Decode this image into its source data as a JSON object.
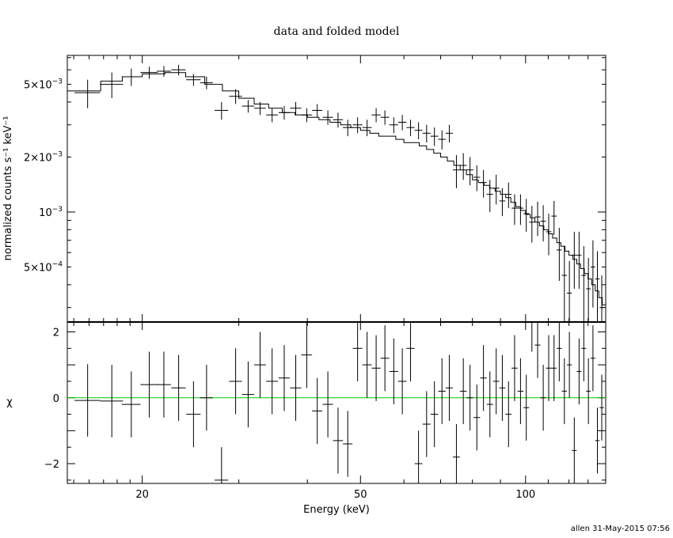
{
  "title": "data and folded model",
  "xlabel": "Energy (keV)",
  "footer": "allen 31-May-2015 07:56",
  "colors": {
    "zero_line": "#00cc00",
    "ink": "#000000"
  },
  "chart_data": [
    {
      "panel": "spectrum",
      "type": "scatter",
      "ylabel": "normalized counts s⁻¹ keV⁻¹",
      "xscale": "log",
      "yscale": "log",
      "xlim": [
        14.6,
        140
      ],
      "ylim": [
        0.00025,
        0.0072
      ],
      "xticks_labeled": [
        "20",
        "50",
        "100"
      ],
      "yticks_labeled": [
        {
          "mant": "5",
          "exp": "-3",
          "value": 0.005
        },
        {
          "mant": "2",
          "exp": "-3",
          "value": 0.002
        },
        {
          "mant": "",
          "exp": "-3",
          "value": 0.001
        },
        {
          "mant": "5",
          "exp": "-4",
          "value": 0.0005
        }
      ],
      "data": {
        "x": [
          15.9,
          17.6,
          19.1,
          20.6,
          21.9,
          23.3,
          24.8,
          26.2,
          27.9,
          29.6,
          31.2,
          32.8,
          34.5,
          36.3,
          38.1,
          39.9,
          41.7,
          43.6,
          45.5,
          47.4,
          49.4,
          51.4,
          53.4,
          55.4,
          57.5,
          59.6,
          61.7,
          63.8,
          66.0,
          68.2,
          70.4,
          72.6,
          74.8,
          77.0,
          79.2,
          81.5,
          83.8,
          86.1,
          88.4,
          90.7,
          93.1,
          95.5,
          97.9,
          100.3,
          102.7,
          105.2,
          107.7,
          110.2,
          112.7,
          115.2,
          117.7,
          120.2,
          122.7,
          125.2,
          127.7,
          130.2,
          132.7,
          135.2,
          137.7
        ],
        "xerr": [
          0.85,
          0.85,
          0.75,
          0.75,
          0.65,
          0.7,
          0.75,
          0.7,
          0.8,
          0.8,
          0.8,
          0.8,
          0.85,
          0.85,
          0.9,
          0.9,
          0.9,
          0.95,
          0.95,
          0.95,
          1.0,
          1.0,
          1.0,
          1.0,
          1.05,
          1.05,
          1.05,
          1.05,
          1.1,
          1.1,
          1.1,
          1.1,
          1.1,
          1.1,
          1.1,
          1.15,
          1.15,
          1.15,
          1.15,
          1.15,
          1.2,
          1.2,
          1.2,
          1.2,
          1.2,
          1.25,
          1.25,
          1.25,
          1.25,
          1.25,
          1.25,
          1.25,
          1.25,
          1.25,
          1.25,
          1.25,
          1.25,
          1.25,
          1.25
        ],
        "y": [
          0.0045,
          0.005,
          0.0055,
          0.0058,
          0.0059,
          0.006,
          0.0053,
          0.0051,
          0.0036,
          0.0043,
          0.0038,
          0.0037,
          0.0034,
          0.0035,
          0.0037,
          0.0034,
          0.0036,
          0.0033,
          0.0032,
          0.0029,
          0.003,
          0.0029,
          0.0034,
          0.0033,
          0.003,
          0.0031,
          0.0029,
          0.0028,
          0.0027,
          0.0026,
          0.0025,
          0.0027,
          0.0017,
          0.0018,
          0.0017,
          0.00155,
          0.00145,
          0.00125,
          0.00135,
          0.00115,
          0.00125,
          0.00105,
          0.00105,
          0.00098,
          0.00088,
          0.00094,
          0.00089,
          0.00078,
          0.00095,
          0.00062,
          0.00045,
          0.00036,
          0.00058,
          0.00058,
          0.00045,
          0.00038,
          0.0005,
          0.00043,
          0.0003
        ],
        "yerr": [
          0.0008,
          0.0008,
          0.0006,
          0.00045,
          0.0004,
          0.0004,
          0.0004,
          0.0004,
          0.0004,
          0.0004,
          0.0003,
          0.0003,
          0.0003,
          0.0003,
          0.0003,
          0.0003,
          0.0003,
          0.0003,
          0.0003,
          0.0003,
          0.0003,
          0.0003,
          0.0003,
          0.0003,
          0.0003,
          0.0003,
          0.0003,
          0.0003,
          0.0003,
          0.0003,
          0.0003,
          0.0003,
          0.00035,
          0.0003,
          0.0003,
          0.00025,
          0.00025,
          0.00025,
          0.00025,
          0.0002,
          0.0002,
          0.0002,
          0.0002,
          0.0002,
          0.0002,
          0.0002,
          0.0002,
          0.0002,
          0.0002,
          0.0002,
          0.0002,
          0.00018,
          0.0002,
          0.0002,
          0.0002,
          0.00018,
          0.0002,
          0.00018,
          0.00015
        ]
      },
      "model": {
        "x": [
          14.6,
          16.8,
          18.4,
          20.0,
          22.0,
          24.0,
          26.0,
          28.0,
          30.0,
          32.0,
          34.0,
          36.0,
          38.0,
          40.0,
          42.0,
          44.0,
          46.0,
          48.0,
          50.0,
          52.0,
          54.0,
          56.0,
          58.0,
          60.0,
          62.0,
          64.0,
          66.0,
          68.0,
          70.0,
          72.0,
          74.0,
          76.0,
          78.0,
          80.0,
          82.0,
          84.0,
          86.0,
          88.0,
          90.0,
          92.0,
          94.0,
          96.0,
          98.0,
          100.0,
          102.0,
          104.0,
          106.0,
          108.0,
          110.0,
          112.0,
          114.0,
          116.0,
          118.0,
          120.0,
          122.0,
          124.0,
          126.0,
          128.0,
          130.0,
          132.0,
          134.0,
          136.0,
          138.0,
          140.0
        ],
        "y": [
          0.0046,
          0.0052,
          0.0055,
          0.0057,
          0.0058,
          0.0055,
          0.005,
          0.0046,
          0.0042,
          0.0039,
          0.0037,
          0.0035,
          0.0034,
          0.0033,
          0.0032,
          0.0031,
          0.003,
          0.0029,
          0.0028,
          0.0027,
          0.0026,
          0.0026,
          0.0025,
          0.0024,
          0.0024,
          0.0023,
          0.0022,
          0.0021,
          0.002,
          0.0019,
          0.0018,
          0.0017,
          0.0016,
          0.0015,
          0.00145,
          0.0014,
          0.00135,
          0.0013,
          0.00125,
          0.0012,
          0.00113,
          0.00107,
          0.00102,
          0.00097,
          0.00093,
          0.00088,
          0.00084,
          0.0008,
          0.00076,
          0.00072,
          0.00068,
          0.00065,
          0.00061,
          0.00058,
          0.00055,
          0.00052,
          0.00049,
          0.00046,
          0.00043,
          0.0004,
          0.00037,
          0.00034,
          0.00031,
          0.00029
        ]
      }
    },
    {
      "panel": "residuals",
      "type": "scatter",
      "ylabel": "χ",
      "xscale": "log",
      "ylim": [
        -2.6,
        2.3
      ],
      "yticks": [
        2,
        0,
        -2
      ],
      "yticks_labeled": [
        "2",
        "0",
        "−2"
      ],
      "zero_line": 0,
      "data": {
        "x": [
          15.9,
          17.6,
          19.1,
          20.6,
          21.9,
          23.3,
          24.8,
          26.2,
          27.9,
          29.6,
          31.2,
          32.8,
          34.5,
          36.3,
          38.1,
          39.9,
          41.7,
          43.6,
          45.5,
          47.4,
          49.4,
          51.4,
          53.4,
          55.4,
          57.5,
          59.6,
          61.7,
          63.8,
          66.0,
          68.2,
          70.4,
          72.6,
          74.8,
          77.0,
          79.2,
          81.5,
          83.8,
          86.1,
          88.4,
          90.7,
          93.1,
          95.5,
          97.9,
          100.3,
          102.7,
          105.2,
          107.7,
          110.2,
          112.7,
          115.2,
          117.7,
          120.2,
          122.7,
          125.2,
          127.7,
          130.2,
          132.7,
          135.2,
          137.7
        ],
        "xerr": [
          0.85,
          0.85,
          0.75,
          0.75,
          0.65,
          0.7,
          0.75,
          0.7,
          0.8,
          0.8,
          0.8,
          0.8,
          0.85,
          0.85,
          0.9,
          0.9,
          0.9,
          0.95,
          0.95,
          0.95,
          1.0,
          1.0,
          1.0,
          1.0,
          1.05,
          1.05,
          1.05,
          1.05,
          1.1,
          1.1,
          1.1,
          1.1,
          1.1,
          1.1,
          1.1,
          1.15,
          1.15,
          1.15,
          1.15,
          1.15,
          1.2,
          1.2,
          1.2,
          1.2,
          1.2,
          1.25,
          1.25,
          1.25,
          1.25,
          1.25,
          1.25,
          1.25,
          1.25,
          1.25,
          1.25,
          1.25,
          1.25,
          1.25,
          1.25
        ],
        "y": [
          -0.08,
          -0.1,
          -0.2,
          0.4,
          0.4,
          0.3,
          -0.5,
          0.0,
          -2.5,
          0.5,
          0.1,
          1.0,
          0.5,
          0.6,
          0.3,
          1.3,
          -0.4,
          -0.2,
          -1.3,
          -1.4,
          1.5,
          1.0,
          0.9,
          1.2,
          0.8,
          0.5,
          1.5,
          -2.0,
          -0.8,
          -0.5,
          0.2,
          0.3,
          -1.8,
          0.2,
          0.0,
          -0.6,
          0.6,
          -0.2,
          0.5,
          0.3,
          -0.5,
          0.9,
          0.2,
          -0.3,
          2.4,
          1.6,
          0.0,
          0.9,
          0.9,
          1.5,
          0.2,
          1.0,
          -1.6,
          0.8,
          1.5,
          0.2,
          1.2,
          -1.3,
          -0.3
        ],
        "yerr": [
          1.1,
          1.1,
          1.0,
          1.0,
          1.0,
          1.0,
          1.0,
          1.0,
          1.0,
          1.0,
          1.0,
          1.0,
          1.0,
          1.0,
          1.0,
          1.0,
          1.0,
          1.0,
          1.0,
          1.0,
          1.0,
          1.0,
          1.0,
          1.0,
          1.0,
          1.0,
          1.0,
          1.0,
          1.0,
          1.0,
          1.0,
          1.0,
          1.0,
          1.0,
          1.0,
          1.0,
          1.0,
          1.0,
          1.0,
          1.0,
          1.0,
          1.0,
          1.0,
          1.0,
          1.0,
          1.0,
          1.0,
          1.0,
          1.0,
          1.0,
          1.0,
          1.0,
          1.0,
          1.0,
          1.0,
          1.0,
          1.0,
          1.0,
          1.0
        ]
      }
    }
  ]
}
